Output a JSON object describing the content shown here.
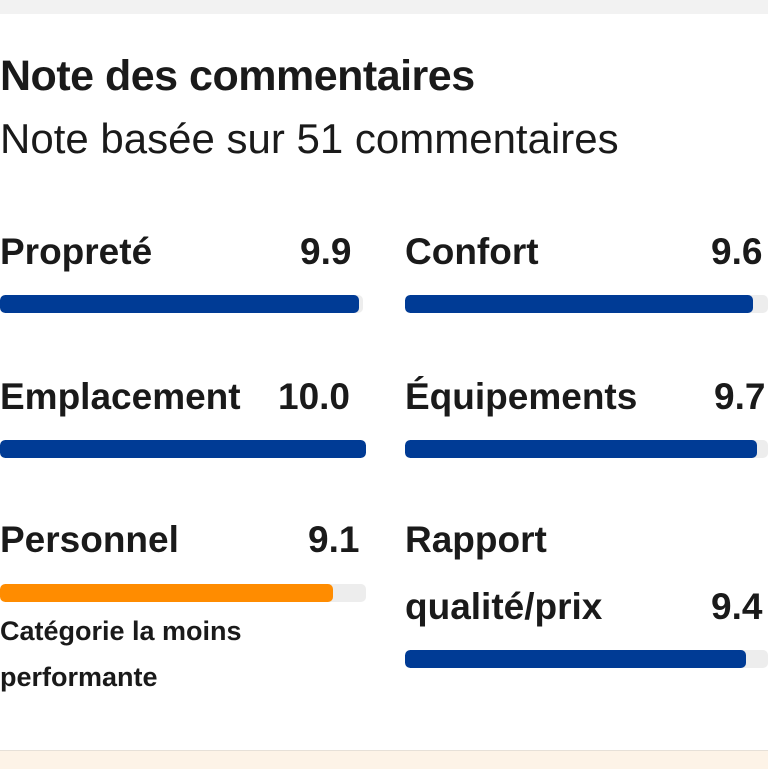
{
  "header": {
    "title": "Note des commentaires",
    "subtitle": "Note basée sur 51 commentaires"
  },
  "colors": {
    "bar_default": "#003b95",
    "bar_lowest": "#ff8c00",
    "track": "#ededed"
  },
  "scale_max": 10,
  "metrics": [
    {
      "label": "Propreté",
      "value": "9.9",
      "score": 9.9,
      "status": "normal"
    },
    {
      "label": "Confort",
      "value": "9.6",
      "score": 9.6,
      "status": "normal"
    },
    {
      "label": "Emplacement",
      "value": "10.0",
      "score": 10.0,
      "status": "normal"
    },
    {
      "label": "Équipements",
      "value": "9.7",
      "score": 9.7,
      "status": "normal"
    },
    {
      "label": "Personnel",
      "value": "9.1",
      "score": 9.1,
      "status": "lowest",
      "note": "Catégorie la moins performante"
    },
    {
      "label_line1": "Rapport",
      "label_line2": "qualité/prix",
      "value": "9.4",
      "score": 9.4,
      "status": "normal"
    }
  ]
}
